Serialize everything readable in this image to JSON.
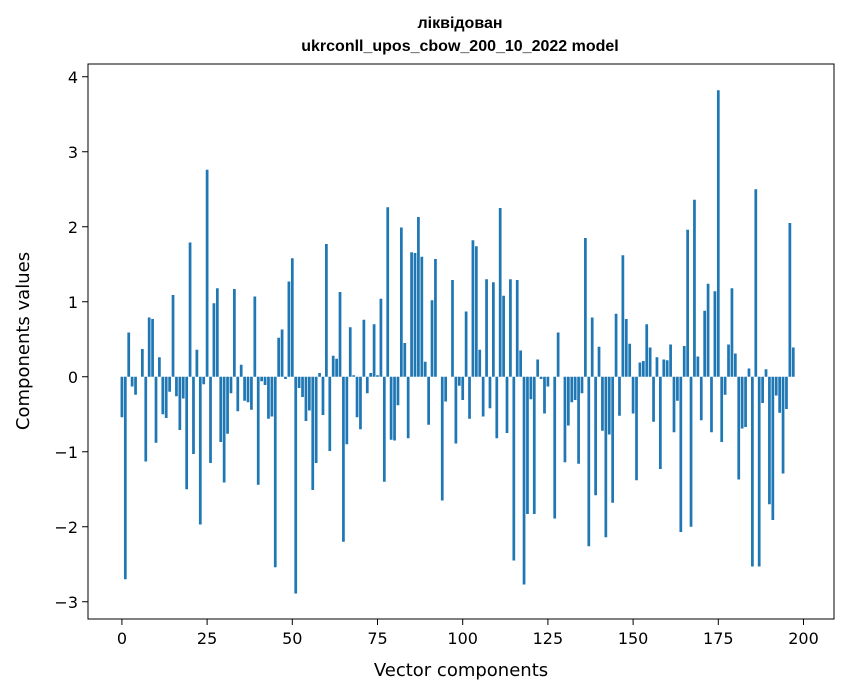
{
  "chart_data": {
    "type": "bar",
    "title_line1": "ліквідован",
    "title_line2": "ukrconll_upos_cbow_200_10_2022 model",
    "xlabel": "Vector components",
    "ylabel": "Components values",
    "xlim": [
      -9.95,
      208.95
    ],
    "ylim": [
      -3.23,
      4.17
    ],
    "xticks": [
      0,
      25,
      50,
      75,
      100,
      125,
      150,
      175,
      200
    ],
    "yticks": [
      -3,
      -2,
      -1,
      0,
      1,
      2,
      3,
      4
    ],
    "xtick_labels": [
      "0",
      "25",
      "50",
      "75",
      "100",
      "125",
      "150",
      "175",
      "200"
    ],
    "ytick_labels": [
      "−3",
      "−2",
      "−1",
      "0",
      "1",
      "2",
      "3",
      "4"
    ],
    "bar_color": "#1f77b4",
    "grid": false,
    "values": [
      -0.54,
      -2.7,
      0.59,
      -0.13,
      -0.24,
      0.0,
      0.37,
      -1.13,
      0.79,
      0.77,
      -0.88,
      0.26,
      -0.5,
      -0.55,
      -0.2,
      1.09,
      -0.26,
      -0.71,
      -0.29,
      -1.5,
      1.79,
      -1.03,
      0.36,
      -1.97,
      -0.1,
      2.76,
      -1.15,
      0.98,
      1.18,
      -0.87,
      -1.41,
      -0.76,
      -0.22,
      1.17,
      -0.46,
      0.16,
      -0.32,
      -0.34,
      -0.44,
      1.07,
      -1.44,
      -0.06,
      -0.11,
      -0.56,
      -0.53,
      -2.54,
      0.52,
      0.63,
      -0.03,
      1.27,
      1.58,
      -2.89,
      -0.15,
      -0.27,
      -0.59,
      -0.45,
      -1.51,
      -1.15,
      0.05,
      -0.51,
      1.77,
      -0.99,
      0.28,
      0.24,
      1.13,
      -2.2,
      -0.9,
      0.66,
      0.02,
      -0.54,
      -0.7,
      0.76,
      -0.22,
      0.05,
      0.7,
      0.02,
      1.04,
      -1.4,
      2.26,
      -0.84,
      -0.85,
      -0.38,
      1.99,
      0.45,
      -0.82,
      1.66,
      1.65,
      2.13,
      1.6,
      0.2,
      -0.64,
      1.02,
      1.57,
      0.0,
      -1.65,
      -0.33,
      0.0,
      1.29,
      -0.89,
      -0.12,
      -0.31,
      0.87,
      -0.56,
      1.82,
      1.74,
      0.36,
      -0.53,
      1.3,
      -0.42,
      1.26,
      -0.82,
      2.25,
      1.08,
      -0.75,
      1.3,
      -2.45,
      1.29,
      0.35,
      -2.77,
      -1.83,
      -0.3,
      -1.83,
      0.23,
      -0.03,
      -0.49,
      -0.13,
      0.0,
      -1.89,
      0.59,
      0.0,
      -1.14,
      -0.65,
      -0.34,
      -0.31,
      -1.16,
      -0.22,
      1.85,
      -2.26,
      0.79,
      -1.58,
      0.4,
      -0.72,
      -2.14,
      -0.77,
      -1.68,
      0.84,
      -0.52,
      1.62,
      0.77,
      0.44,
      -0.49,
      -1.38,
      0.19,
      0.21,
      0.7,
      0.39,
      -0.6,
      0.26,
      -1.23,
      0.23,
      0.22,
      0.43,
      -0.74,
      -0.32,
      -2.07,
      0.41,
      1.96,
      -2.0,
      2.36,
      0.27,
      -0.58,
      0.88,
      1.24,
      -0.74,
      1.14,
      3.82,
      -0.87,
      -0.24,
      0.43,
      1.18,
      0.31,
      -1.37,
      -0.69,
      -0.67,
      0.11,
      -2.53,
      2.5,
      -2.53,
      -0.35,
      0.1,
      -1.7,
      -1.91,
      -0.25,
      -0.48,
      -1.29,
      -0.43,
      2.05,
      0.39
    ]
  }
}
